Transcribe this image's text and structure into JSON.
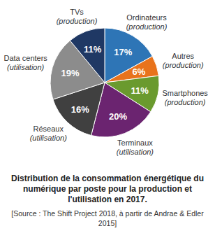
{
  "chart_data": {
    "type": "pie",
    "title": "Distribution de la consommation énergétique du numérique par poste pour la production et l'utilisation en 2017.",
    "source": "[Source : The Shift Project 2018, à partir de Andrae & Edler 2015]",
    "categories": [
      "Ordinateurs",
      "Autres",
      "Smartphones",
      "Terminaux",
      "Réseaux",
      "Data centers",
      "TVs"
    ],
    "category_notes": [
      "(production)",
      "(production)",
      "(production)",
      "(utilisation)",
      "(utilisation)",
      "(utilisation)",
      "(production)"
    ],
    "values": [
      17,
      6,
      11,
      20,
      16,
      19,
      11
    ],
    "value_labels": [
      "17%",
      "6%",
      "11%",
      "20%",
      "16%",
      "19%",
      "11%"
    ],
    "colors": [
      "#2e75b6",
      "#e8731c",
      "#6a9a2e",
      "#6b2470",
      "#404040",
      "#8c8c8c",
      "#1f3864"
    ],
    "data_labels": true
  }
}
